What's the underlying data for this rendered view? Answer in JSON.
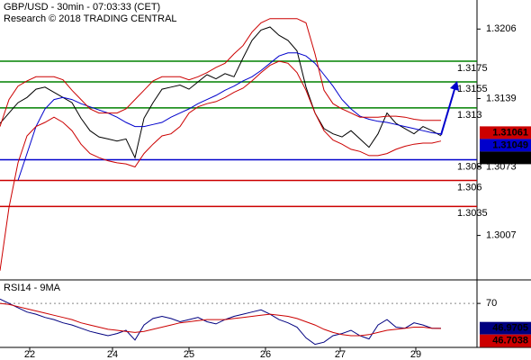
{
  "title": "GBP/USD - 30min - 07:03:33 (CET)",
  "subtitle": "Research © 2018 TRADING CENTRAL",
  "chart_data": [
    {
      "type": "line",
      "x": [
        0,
        1,
        2,
        3,
        4,
        5,
        6,
        7,
        8,
        9,
        10,
        11,
        12,
        13,
        14,
        15,
        16,
        17,
        18,
        19,
        20,
        21,
        22,
        23,
        24,
        25,
        26,
        27,
        28,
        29,
        30,
        31,
        32,
        33,
        34,
        35,
        36,
        37,
        38,
        39,
        40,
        41,
        42,
        43,
        44,
        45,
        46,
        47,
        48,
        49
      ],
      "xlim": [
        0,
        53
      ],
      "ylim": [
        1.2965,
        1.3234
      ],
      "yticks": [
        1.3206,
        1.3139,
        1.3073,
        1.3007
      ],
      "series": [
        {
          "color": "#000000",
          "values": [
            1.3115,
            1.3125,
            1.3135,
            1.314,
            1.3148,
            1.315,
            1.3145,
            1.314,
            1.3135,
            1.312,
            1.3108,
            1.3102,
            1.31,
            1.3098,
            1.31,
            1.3082,
            1.312,
            1.3135,
            1.3148,
            1.315,
            1.3152,
            1.3148,
            1.3155,
            1.3162,
            1.3158,
            1.3163,
            1.316,
            1.3178,
            1.3195,
            1.3205,
            1.3208,
            1.32,
            1.3195,
            1.3185,
            1.315,
            1.3125,
            1.311,
            1.3105,
            1.3102,
            1.3108,
            1.31,
            1.3092,
            1.3105,
            1.3125,
            1.3115,
            1.311,
            1.3105,
            1.3112,
            1.3108,
            1.3103
          ]
        },
        {
          "color": "#0000cc",
          "values": [
            null,
            null,
            1.306,
            1.3086,
            1.3112,
            1.3129,
            1.3138,
            1.314,
            1.3138,
            1.3134,
            1.3131,
            1.3128,
            1.3125,
            1.3121,
            1.3116,
            1.3112,
            1.3112,
            1.3114,
            1.3116,
            1.3121,
            1.3125,
            1.3129,
            1.3134,
            1.3138,
            1.3142,
            1.3147,
            1.3151,
            1.3156,
            1.316,
            1.3166,
            1.3173,
            1.318,
            1.3183,
            1.3183,
            1.318,
            1.3173,
            1.3162,
            1.3151,
            1.3138,
            1.3129,
            1.3122,
            1.3119,
            1.3117,
            1.3116,
            1.3114,
            1.3112,
            1.311,
            1.3108,
            1.3106,
            1.31049
          ]
        },
        {
          "color": "#cc0000",
          "values": [
            1.3112,
            1.3138,
            1.3151,
            1.3156,
            1.316,
            1.316,
            1.316,
            1.3157,
            1.3147,
            1.3138,
            1.3129,
            1.3125,
            1.3125,
            1.3125,
            1.3129,
            1.3138,
            1.3147,
            1.3156,
            1.316,
            1.316,
            1.316,
            1.3157,
            1.316,
            1.3164,
            1.3169,
            1.3173,
            1.3182,
            1.319,
            1.3203,
            1.3212,
            1.3216,
            1.3216,
            1.3216,
            1.3216,
            1.3212,
            1.3182,
            1.3147,
            1.3134,
            1.3129,
            1.3125,
            1.3121,
            1.3121,
            1.3121,
            1.3122,
            1.3122,
            1.3121,
            1.3119,
            1.3118,
            1.3118,
            1.3118
          ]
        },
        {
          "color": "#cc0000",
          "values": [
            1.2973,
            1.3034,
            1.3077,
            1.3103,
            1.3112,
            1.3116,
            1.3121,
            1.3116,
            1.3108,
            1.3095,
            1.3086,
            1.3082,
            1.3079,
            1.3077,
            1.3076,
            1.3073,
            1.3086,
            1.3095,
            1.3103,
            1.3105,
            1.3112,
            1.3125,
            1.3131,
            1.3134,
            1.3136,
            1.314,
            1.3145,
            1.3149,
            1.3156,
            1.3164,
            1.3171,
            1.3175,
            1.3173,
            1.3164,
            1.3147,
            1.3125,
            1.3108,
            1.3099,
            1.3095,
            1.309,
            1.3088,
            1.3084,
            1.3084,
            1.3086,
            1.309,
            1.3093,
            1.3095,
            1.3096,
            1.3096,
            1.3098
          ]
        }
      ],
      "levels": [
        {
          "value": 1.3175,
          "color": "#008000"
        },
        {
          "value": 1.3155,
          "color": "#008000"
        },
        {
          "value": 1.313,
          "color": "#008000"
        },
        {
          "value": 1.308,
          "color": "#0000cc"
        },
        {
          "value": 1.306,
          "color": "#cc0000"
        },
        {
          "value": 1.3035,
          "color": "#cc0000"
        }
      ],
      "price_tag": {
        "value": 1.31061,
        "color": "#cc0000"
      }
    },
    {
      "type": "line",
      "title": "RSI14 - 9MA",
      "x": [
        0,
        1,
        2,
        3,
        4,
        5,
        6,
        7,
        8,
        9,
        10,
        11,
        12,
        13,
        14,
        15,
        16,
        17,
        18,
        19,
        20,
        21,
        22,
        23,
        24,
        25,
        26,
        27,
        28,
        29,
        30,
        31,
        32,
        33,
        34,
        35,
        36,
        37,
        38,
        39,
        40,
        41,
        42,
        43,
        44,
        45,
        46,
        47,
        48,
        49
      ],
      "xlim": [
        0,
        53
      ],
      "xticks": [
        {
          "value": 3.3,
          "label": "22"
        },
        {
          "value": 12.5,
          "label": "24"
        },
        {
          "value": 21,
          "label": "25"
        },
        {
          "value": 29.5,
          "label": "26"
        },
        {
          "value": 37.8,
          "label": "27"
        },
        {
          "value": 46.2,
          "label": "29"
        }
      ],
      "ylim": [
        30,
        91
      ],
      "yticks": [
        70
      ],
      "series": [
        {
          "color": "#000080",
          "values": [
            74,
            70,
            66,
            62,
            60,
            57,
            55,
            52,
            50,
            47,
            44,
            42,
            40,
            42,
            45,
            36,
            50,
            56,
            58,
            56,
            53,
            55,
            57,
            53,
            51,
            55,
            58,
            60,
            62,
            64,
            60,
            55,
            52,
            48,
            38,
            32,
            34,
            40,
            42,
            45,
            40,
            37,
            50,
            55,
            48,
            47,
            52,
            50,
            47,
            46.9705
          ]
        },
        {
          "color": "#cc0000",
          "values": [
            70,
            69,
            67,
            65,
            63,
            61,
            59,
            57,
            55,
            52,
            50,
            48,
            46,
            45,
            44,
            43,
            44,
            46,
            48,
            50,
            52,
            53,
            54,
            55,
            55,
            55,
            56,
            57,
            58,
            59,
            60,
            59,
            58,
            56,
            53,
            50,
            46,
            43,
            41,
            40,
            40,
            41,
            43,
            45,
            46,
            47,
            48,
            48,
            47,
            46.7038
          ]
        }
      ]
    }
  ]
}
